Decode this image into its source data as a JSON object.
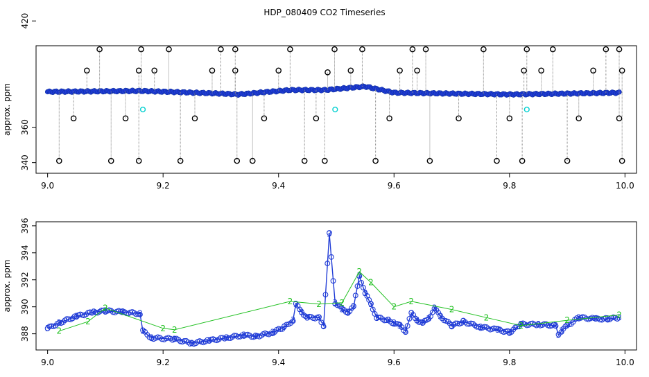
{
  "title": "HDP_080409  CO2 Timeseries",
  "chart_data": [
    {
      "type": "scatter",
      "ylabel": "approx. ppm",
      "xlim": [
        8.98,
        10.02
      ],
      "ylim": [
        334,
        406
      ],
      "xticks": [
        9.0,
        9.2,
        9.4,
        9.6,
        9.8,
        10.0
      ],
      "xtick_labels": [
        "9.0",
        "9.2",
        "9.4",
        "9.6",
        "9.8",
        "10.0"
      ],
      "yticks": [
        340,
        360,
        420
      ],
      "ytick_labels": [
        "340",
        "360",
        "420"
      ],
      "baseline": {
        "x_start": 9.0,
        "x_end": 9.99,
        "profile": [
          [
            9.0,
            380
          ],
          [
            9.16,
            380.5
          ],
          [
            9.3,
            379
          ],
          [
            9.33,
            378.5
          ],
          [
            9.42,
            381
          ],
          [
            9.48,
            381
          ],
          [
            9.55,
            383
          ],
          [
            9.6,
            379.5
          ],
          [
            9.8,
            378.5
          ],
          [
            9.86,
            378.8
          ],
          [
            9.99,
            379.5
          ]
        ]
      },
      "outliers_high": [
        9.09,
        9.162,
        9.21,
        9.3,
        9.325,
        9.42,
        9.497,
        9.545,
        9.632,
        9.655,
        9.755,
        9.83,
        9.875,
        9.967,
        9.99
      ],
      "outliers_low": [
        9.02,
        9.11,
        9.158,
        9.23,
        9.328,
        9.355,
        9.445,
        9.48,
        9.568,
        9.662,
        9.778,
        9.822,
        9.9,
        9.995
      ],
      "mid_high_points": [
        [
          9.068,
          392
        ],
        [
          9.158,
          392
        ],
        [
          9.185,
          392
        ],
        [
          9.285,
          392
        ],
        [
          9.325,
          392
        ],
        [
          9.4,
          392
        ],
        [
          9.485,
          391
        ],
        [
          9.525,
          392
        ],
        [
          9.61,
          392
        ],
        [
          9.64,
          392
        ],
        [
          9.825,
          392
        ],
        [
          9.855,
          392
        ],
        [
          9.945,
          392
        ],
        [
          9.995,
          392
        ]
      ],
      "mid_low_points": [
        [
          9.045,
          365
        ],
        [
          9.135,
          365
        ],
        [
          9.255,
          365
        ],
        [
          9.375,
          365
        ],
        [
          9.465,
          365
        ],
        [
          9.592,
          365
        ],
        [
          9.712,
          365
        ],
        [
          9.8,
          365
        ],
        [
          9.92,
          365
        ],
        [
          9.99,
          365
        ]
      ],
      "cyan_points": [
        [
          9.165,
          370
        ],
        [
          9.498,
          370
        ],
        [
          9.83,
          370
        ]
      ],
      "series_colors": {
        "main": "#1f3bd6",
        "outlier": "#000000",
        "secondary": "#20d020",
        "drop": "#00d0d0"
      }
    },
    {
      "type": "line",
      "ylabel": "approx. ppm",
      "xlim": [
        8.98,
        10.02
      ],
      "ylim": [
        386.8,
        396.3
      ],
      "xticks": [
        9.0,
        9.2,
        9.4,
        9.6,
        9.8,
        10.0
      ],
      "xtick_labels": [
        "9.0",
        "9.2",
        "9.4",
        "9.6",
        "9.8",
        "10.0"
      ],
      "yticks": [
        388,
        390,
        392,
        394,
        396
      ],
      "ytick_labels": [
        "388",
        "390",
        "392",
        "394",
        "396"
      ],
      "series": [
        {
          "marker": "3",
          "color": "#1f3bd6",
          "points": [
            [
              9.0,
              388.4
            ],
            [
              9.02,
              388.8
            ],
            [
              9.05,
              389.3
            ],
            [
              9.08,
              389.6
            ],
            [
              9.1,
              389.7
            ],
            [
              9.13,
              389.6
            ],
            [
              9.16,
              389.5
            ],
            [
              9.165,
              388.2
            ],
            [
              9.18,
              387.7
            ],
            [
              9.22,
              387.6
            ],
            [
              9.25,
              387.3
            ],
            [
              9.28,
              387.5
            ],
            [
              9.31,
              387.7
            ],
            [
              9.34,
              387.9
            ],
            [
              9.36,
              387.8
            ],
            [
              9.39,
              388.1
            ],
            [
              9.41,
              388.5
            ],
            [
              9.425,
              389.0
            ],
            [
              9.43,
              390.2
            ],
            [
              9.44,
              389.6
            ],
            [
              9.45,
              389.2
            ],
            [
              9.47,
              389.2
            ],
            [
              9.478,
              388.6
            ],
            [
              9.488,
              395.4
            ],
            [
              9.498,
              390.3
            ],
            [
              9.51,
              389.8
            ],
            [
              9.52,
              389.6
            ],
            [
              9.53,
              390.0
            ],
            [
              9.54,
              392.3
            ],
            [
              9.55,
              391.0
            ],
            [
              9.56,
              390.2
            ],
            [
              9.57,
              389.2
            ],
            [
              9.59,
              389.0
            ],
            [
              9.6,
              388.8
            ],
            [
              9.61,
              388.6
            ],
            [
              9.62,
              388.2
            ],
            [
              9.63,
              389.5
            ],
            [
              9.64,
              389.0
            ],
            [
              9.65,
              388.8
            ],
            [
              9.66,
              389.1
            ],
            [
              9.67,
              389.9
            ],
            [
              9.68,
              389.3
            ],
            [
              9.7,
              388.6
            ],
            [
              9.72,
              388.9
            ],
            [
              9.75,
              388.5
            ],
            [
              9.78,
              388.3
            ],
            [
              9.8,
              388.1
            ],
            [
              9.82,
              388.7
            ],
            [
              9.85,
              388.7
            ],
            [
              9.88,
              388.6
            ],
            [
              9.885,
              387.9
            ],
            [
              9.89,
              388.2
            ],
            [
              9.9,
              388.6
            ],
            [
              9.92,
              389.2
            ],
            [
              9.95,
              389.1
            ],
            [
              9.97,
              389.1
            ],
            [
              9.99,
              389.2
            ]
          ]
        },
        {
          "marker": "2",
          "color": "#20c020",
          "points": [
            [
              9.02,
              388.2
            ],
            [
              9.07,
              388.9
            ],
            [
              9.1,
              389.9
            ],
            [
              9.2,
              388.4
            ],
            [
              9.22,
              388.3
            ],
            [
              9.42,
              390.4
            ],
            [
              9.47,
              390.2
            ],
            [
              9.51,
              390.3
            ],
            [
              9.54,
              392.6
            ],
            [
              9.56,
              391.8
            ],
            [
              9.6,
              390.0
            ],
            [
              9.63,
              390.4
            ],
            [
              9.7,
              389.8
            ],
            [
              9.76,
              389.2
            ],
            [
              9.82,
              388.6
            ],
            [
              9.9,
              389.0
            ],
            [
              9.99,
              389.4
            ]
          ]
        }
      ]
    }
  ]
}
